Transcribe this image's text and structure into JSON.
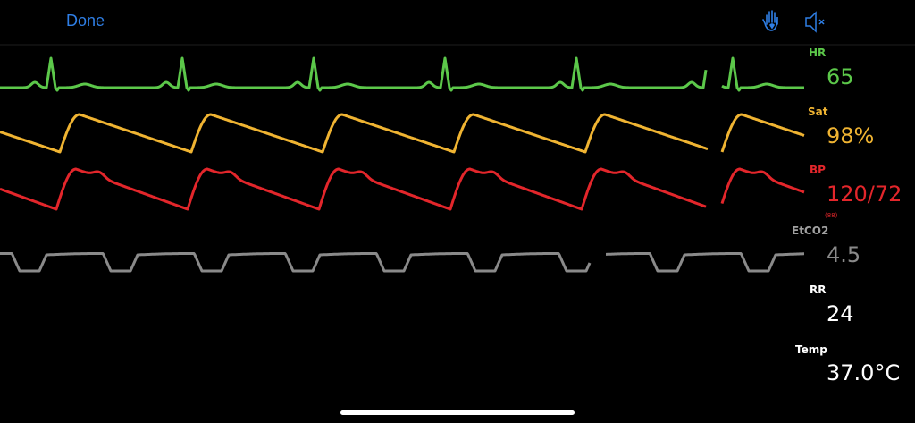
{
  "toolbar": {
    "done": "Done"
  },
  "vitals": [
    {
      "label": "HR",
      "value": "65"
    },
    {
      "label": "Sat",
      "value": "98%"
    },
    {
      "label": "BP",
      "value": "120/72",
      "sub": "(88)"
    },
    {
      "label": "EtCO2",
      "value": "4.5"
    },
    {
      "label": "RR",
      "value": "24"
    },
    {
      "label": "Temp",
      "value": "37.0°C"
    }
  ]
}
